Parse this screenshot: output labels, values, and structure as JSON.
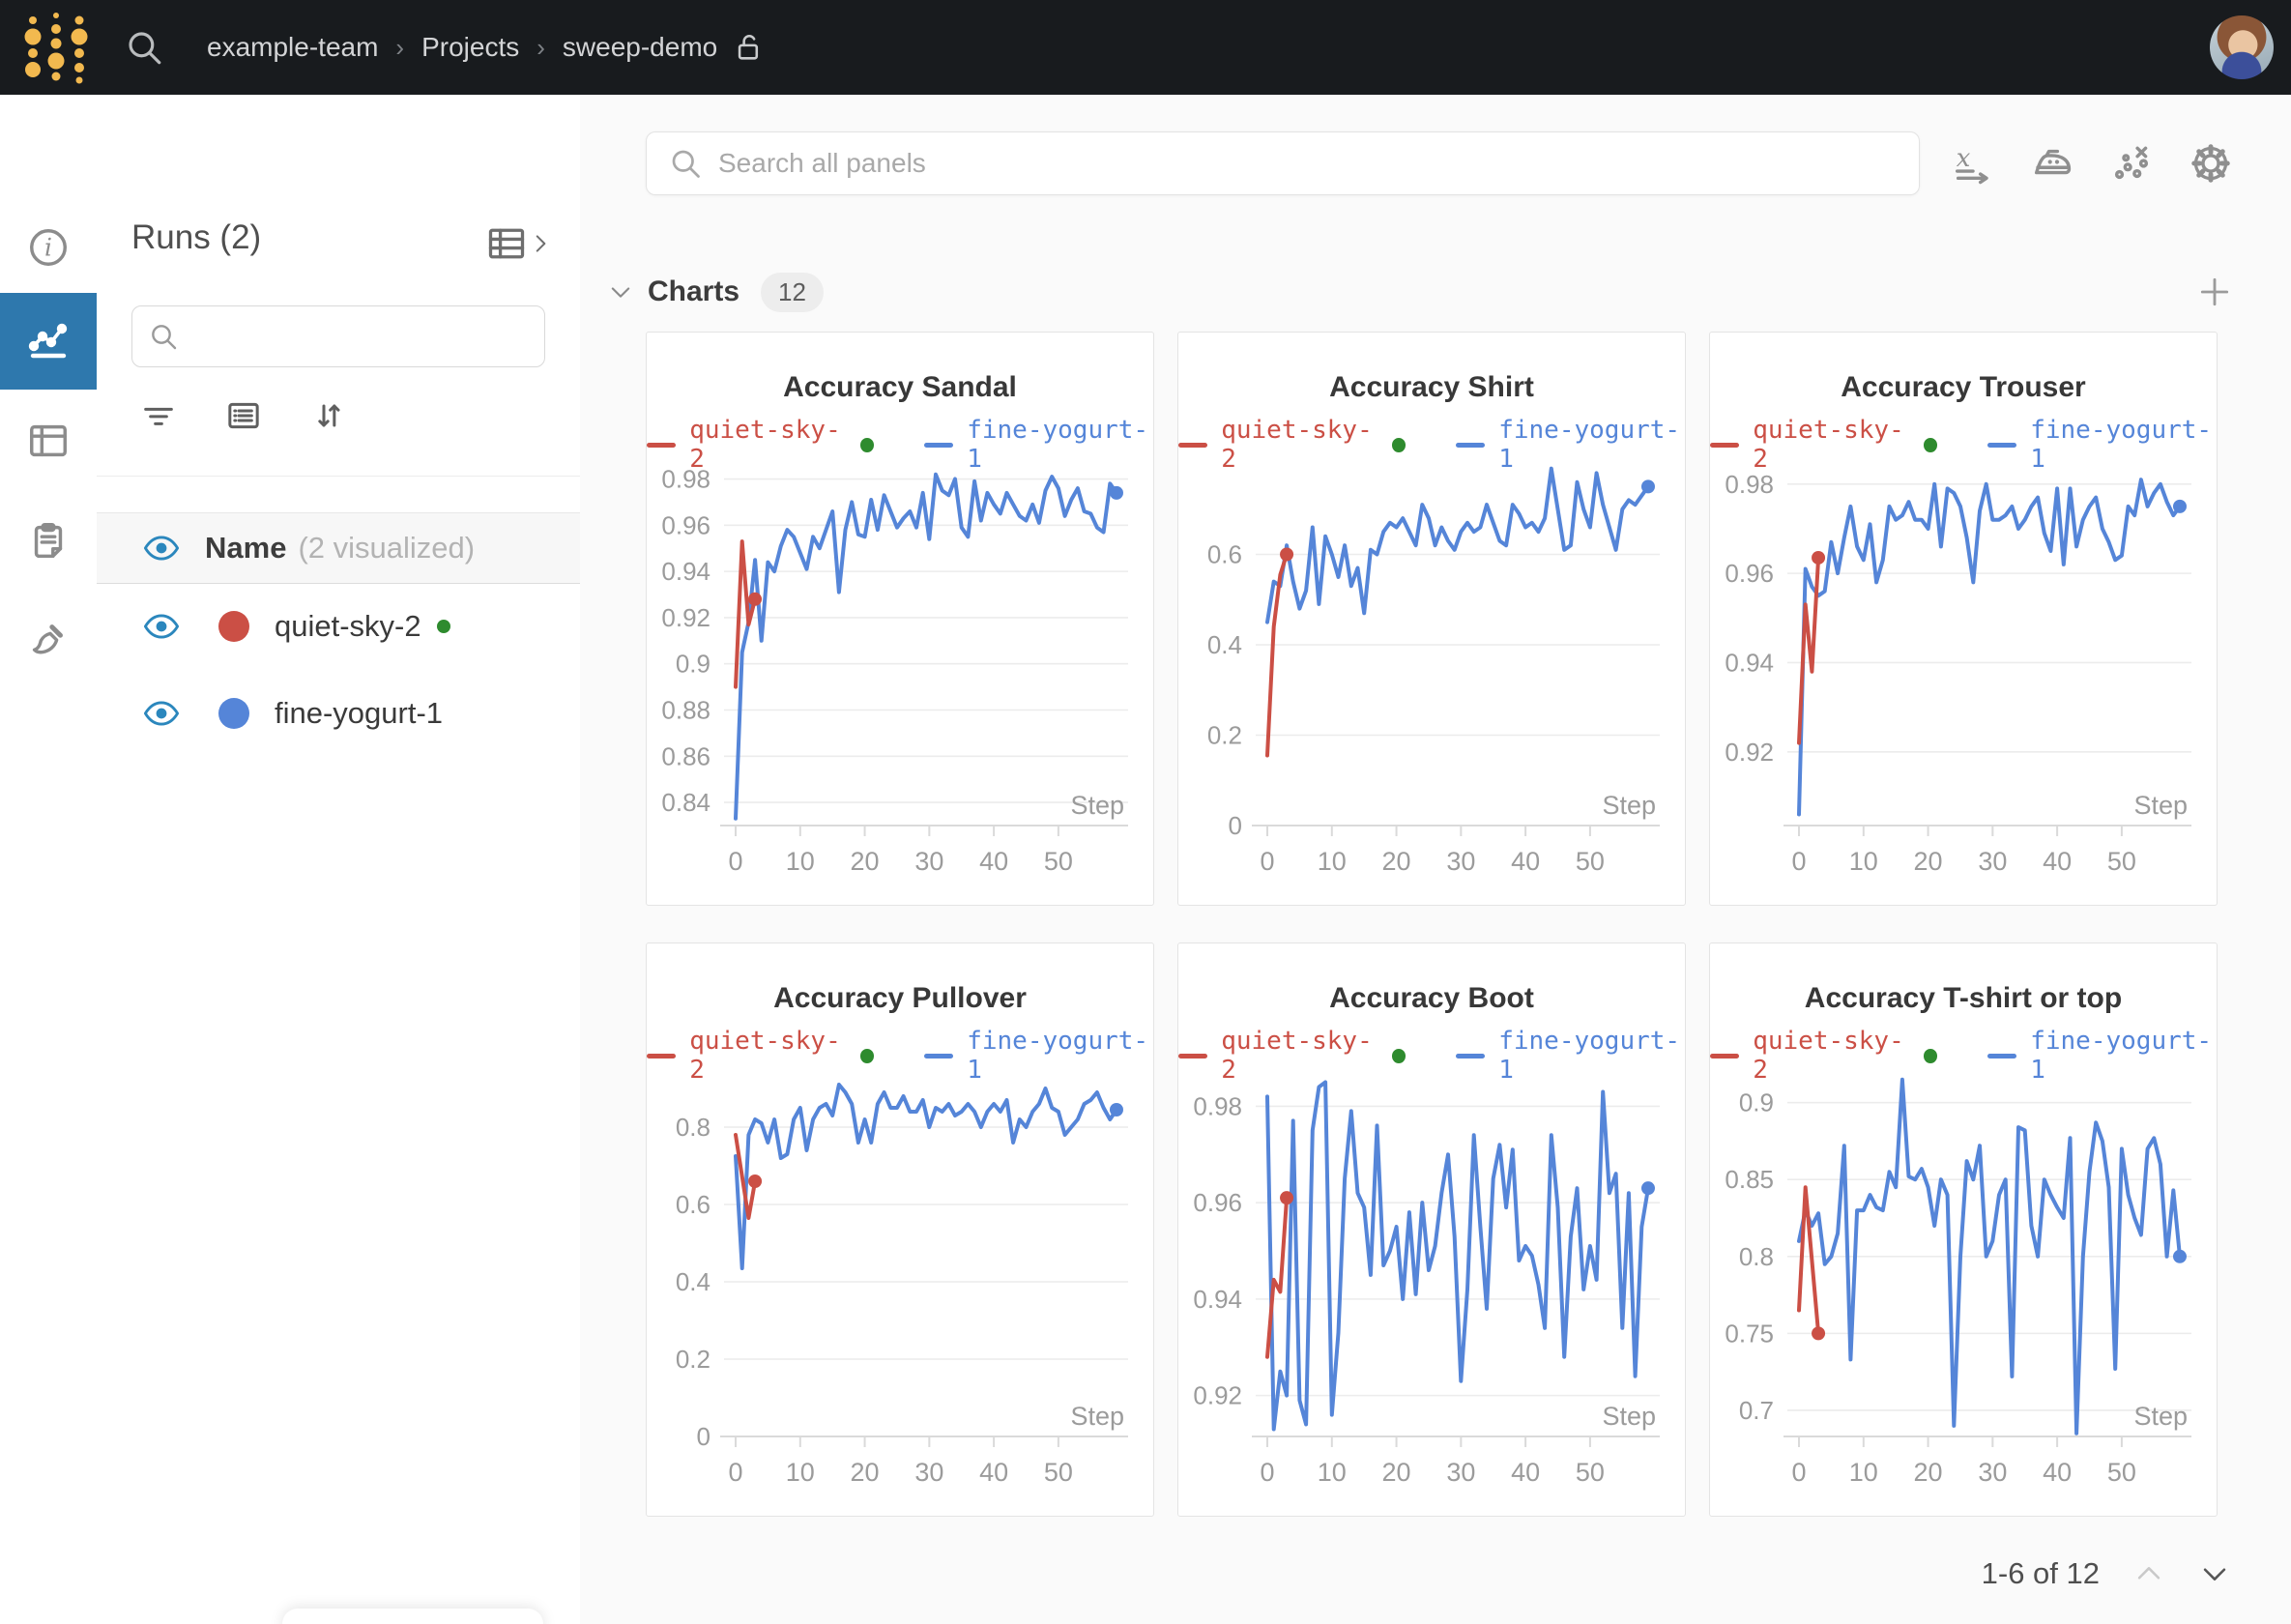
{
  "topbar": {
    "breadcrumb": {
      "items": [
        "example-team",
        "Projects",
        "sweep-demo"
      ],
      "separator": "›"
    }
  },
  "runs": {
    "title": "Runs (2)",
    "search_placeholder": "",
    "header": {
      "name_label": "Name",
      "visualized_note": "(2 visualized)"
    },
    "rows": [
      {
        "name": "quiet-sky-2",
        "color": "#cb4f45",
        "status_dot": "#2e8b2e"
      },
      {
        "name": "fine-yogurt-1",
        "color": "#5585d8",
        "status_dot": null
      }
    ]
  },
  "panels": {
    "search_placeholder": "Search all panels",
    "section_label": "Charts",
    "section_count": "12",
    "pagination": {
      "label": "1-6 of 12"
    }
  },
  "chart_data": [
    {
      "type": "line",
      "title": "Accuracy Sandal",
      "xlabel": "Step",
      "xticks": [
        0,
        10,
        20,
        30,
        40,
        50
      ],
      "xlim": [
        -1.8,
        60.8
      ],
      "yticks": [
        0.84,
        0.86,
        0.88,
        0.9,
        0.92,
        0.94,
        0.96,
        0.98
      ],
      "ytick_labels": [
        "0.84",
        "0.86",
        "0.88",
        "0.9",
        "0.92",
        "0.94",
        "0.96",
        "0.98"
      ],
      "ylim": [
        0.83,
        0.9865
      ],
      "series": [
        {
          "name": "quiet-sky-2",
          "color": "#cb4f45",
          "status_dot": "#2e8b2e",
          "x": [
            0,
            1,
            2,
            3
          ],
          "y": [
            0.89,
            0.953,
            0.917,
            0.928
          ]
        },
        {
          "name": "fine-yogurt-1",
          "color": "#5585d8",
          "status_dot": null,
          "y": [
            0.833,
            0.905,
            0.918,
            0.945,
            0.91,
            0.944,
            0.94,
            0.951,
            0.958,
            0.955,
            0.948,
            0.941,
            0.955,
            0.95,
            0.958,
            0.966,
            0.931,
            0.958,
            0.97,
            0.956,
            0.955,
            0.971,
            0.958,
            0.973,
            0.966,
            0.959,
            0.963,
            0.966,
            0.959,
            0.974,
            0.954,
            0.982,
            0.975,
            0.973,
            0.98,
            0.959,
            0.955,
            0.979,
            0.962,
            0.974,
            0.969,
            0.965,
            0.974,
            0.969,
            0.964,
            0.962,
            0.969,
            0.961,
            0.975,
            0.981,
            0.976,
            0.964,
            0.971,
            0.976,
            0.966,
            0.965,
            0.959,
            0.957,
            0.978,
            0.974
          ]
        }
      ]
    },
    {
      "type": "line",
      "title": "Accuracy Shirt",
      "xlabel": "Step",
      "xticks": [
        0,
        10,
        20,
        30,
        40,
        50
      ],
      "xlim": [
        -1.8,
        60.8
      ],
      "yticks": [
        0,
        0.2,
        0.4,
        0.6
      ],
      "ytick_labels": [
        "0",
        "0.2",
        "0.4",
        "0.6"
      ],
      "ylim": [
        0,
        0.8
      ],
      "series": [
        {
          "name": "quiet-sky-2",
          "color": "#cb4f45",
          "status_dot": "#2e8b2e",
          "x": [
            0,
            1,
            2,
            3
          ],
          "y": [
            0.155,
            0.44,
            0.555,
            0.6
          ]
        },
        {
          "name": "fine-yogurt-1",
          "color": "#5585d8",
          "status_dot": null,
          "y": [
            0.45,
            0.54,
            0.53,
            0.62,
            0.54,
            0.48,
            0.52,
            0.66,
            0.49,
            0.64,
            0.6,
            0.55,
            0.62,
            0.53,
            0.57,
            0.47,
            0.61,
            0.6,
            0.65,
            0.67,
            0.66,
            0.68,
            0.65,
            0.62,
            0.71,
            0.68,
            0.62,
            0.66,
            0.63,
            0.61,
            0.65,
            0.67,
            0.65,
            0.66,
            0.71,
            0.67,
            0.63,
            0.62,
            0.71,
            0.69,
            0.66,
            0.67,
            0.65,
            0.68,
            0.79,
            0.7,
            0.61,
            0.62,
            0.76,
            0.7,
            0.66,
            0.78,
            0.71,
            0.66,
            0.61,
            0.7,
            0.72,
            0.71,
            0.73,
            0.75
          ]
        }
      ]
    },
    {
      "type": "line",
      "title": "Accuracy Trouser",
      "xlabel": "Step",
      "xticks": [
        0,
        10,
        20,
        30,
        40,
        50
      ],
      "xlim": [
        -1.8,
        60.8
      ],
      "yticks": [
        0.92,
        0.94,
        0.96,
        0.98
      ],
      "ytick_labels": [
        "0.92",
        "0.94",
        "0.96",
        "0.98"
      ],
      "ylim": [
        0.9035,
        0.9845
      ],
      "series": [
        {
          "name": "quiet-sky-2",
          "color": "#cb4f45",
          "status_dot": "#2e8b2e",
          "x": [
            0,
            1,
            2,
            3
          ],
          "y": [
            0.922,
            0.953,
            0.938,
            0.9635
          ]
        },
        {
          "name": "fine-yogurt-1",
          "color": "#5585d8",
          "status_dot": null,
          "y": [
            0.906,
            0.961,
            0.957,
            0.955,
            0.956,
            0.967,
            0.96,
            0.968,
            0.975,
            0.966,
            0.963,
            0.971,
            0.958,
            0.963,
            0.975,
            0.972,
            0.973,
            0.976,
            0.972,
            0.972,
            0.97,
            0.98,
            0.966,
            0.979,
            0.978,
            0.975,
            0.968,
            0.958,
            0.974,
            0.98,
            0.972,
            0.972,
            0.973,
            0.975,
            0.97,
            0.972,
            0.975,
            0.977,
            0.969,
            0.965,
            0.979,
            0.962,
            0.979,
            0.966,
            0.972,
            0.975,
            0.977,
            0.97,
            0.967,
            0.963,
            0.964,
            0.975,
            0.973,
            0.981,
            0.975,
            0.978,
            0.98,
            0.976,
            0.973,
            0.975
          ]
        }
      ]
    },
    {
      "type": "line",
      "title": "Accuracy Pullover",
      "xlabel": "Step",
      "xticks": [
        0,
        10,
        20,
        30,
        40,
        50
      ],
      "xlim": [
        -1.8,
        60.8
      ],
      "yticks": [
        0,
        0.2,
        0.4,
        0.6,
        0.8
      ],
      "ytick_labels": [
        "0",
        "0.2",
        "0.4",
        "0.6",
        "0.8"
      ],
      "ylim": [
        0,
        0.935
      ],
      "series": [
        {
          "name": "quiet-sky-2",
          "color": "#cb4f45",
          "status_dot": "#2e8b2e",
          "x": [
            0,
            2,
            3
          ],
          "y": [
            0.78,
            0.565,
            0.66
          ]
        },
        {
          "name": "fine-yogurt-1",
          "color": "#5585d8",
          "status_dot": null,
          "y": [
            0.725,
            0.435,
            0.78,
            0.82,
            0.81,
            0.76,
            0.82,
            0.72,
            0.73,
            0.82,
            0.85,
            0.74,
            0.82,
            0.85,
            0.86,
            0.83,
            0.91,
            0.89,
            0.86,
            0.76,
            0.82,
            0.76,
            0.86,
            0.89,
            0.85,
            0.85,
            0.88,
            0.84,
            0.84,
            0.87,
            0.8,
            0.85,
            0.84,
            0.86,
            0.83,
            0.84,
            0.86,
            0.84,
            0.8,
            0.84,
            0.86,
            0.84,
            0.87,
            0.76,
            0.82,
            0.8,
            0.84,
            0.86,
            0.9,
            0.85,
            0.84,
            0.78,
            0.8,
            0.82,
            0.86,
            0.87,
            0.89,
            0.85,
            0.82,
            0.845
          ]
        }
      ]
    },
    {
      "type": "line",
      "title": "Accuracy Boot",
      "xlabel": "Step",
      "xticks": [
        0,
        10,
        20,
        30,
        40,
        50
      ],
      "xlim": [
        -1.8,
        60.8
      ],
      "yticks": [
        0.92,
        0.94,
        0.96,
        0.98
      ],
      "ytick_labels": [
        "0.92",
        "0.94",
        "0.96",
        "0.98"
      ],
      "ylim": [
        0.9115,
        0.9865
      ],
      "series": [
        {
          "name": "quiet-sky-2",
          "color": "#cb4f45",
          "status_dot": "#2e8b2e",
          "x": [
            0,
            1,
            2,
            3
          ],
          "y": [
            0.928,
            0.944,
            0.9415,
            0.961
          ]
        },
        {
          "name": "fine-yogurt-1",
          "color": "#5585d8",
          "status_dot": null,
          "y": [
            0.982,
            0.913,
            0.925,
            0.92,
            0.977,
            0.919,
            0.914,
            0.975,
            0.984,
            0.985,
            0.916,
            0.933,
            0.965,
            0.979,
            0.962,
            0.959,
            0.945,
            0.976,
            0.947,
            0.95,
            0.955,
            0.94,
            0.958,
            0.941,
            0.96,
            0.946,
            0.951,
            0.962,
            0.97,
            0.953,
            0.923,
            0.942,
            0.974,
            0.955,
            0.938,
            0.965,
            0.972,
            0.959,
            0.971,
            0.948,
            0.951,
            0.949,
            0.943,
            0.934,
            0.974,
            0.959,
            0.928,
            0.953,
            0.963,
            0.942,
            0.951,
            0.944,
            0.983,
            0.962,
            0.966,
            0.934,
            0.962,
            0.924,
            0.955,
            0.963
          ]
        }
      ]
    },
    {
      "type": "line",
      "title": "Accuracy T-shirt or top",
      "xlabel": "Step",
      "xticks": [
        0,
        10,
        20,
        30,
        40,
        50
      ],
      "xlim": [
        -1.8,
        60.8
      ],
      "yticks": [
        0.7,
        0.75,
        0.8,
        0.85,
        0.9
      ],
      "ytick_labels": [
        "0.7",
        "0.75",
        "0.8",
        "0.85",
        "0.9"
      ],
      "ylim": [
        0.683,
        0.918
      ],
      "series": [
        {
          "name": "quiet-sky-2",
          "color": "#cb4f45",
          "status_dot": "#2e8b2e",
          "x": [
            0,
            1,
            3
          ],
          "y": [
            0.765,
            0.845,
            0.75
          ]
        },
        {
          "name": "fine-yogurt-1",
          "color": "#5585d8",
          "status_dot": null,
          "y": [
            0.81,
            0.83,
            0.82,
            0.828,
            0.795,
            0.8,
            0.815,
            0.872,
            0.733,
            0.83,
            0.83,
            0.84,
            0.832,
            0.83,
            0.855,
            0.845,
            0.915,
            0.852,
            0.85,
            0.857,
            0.845,
            0.82,
            0.85,
            0.84,
            0.69,
            0.8,
            0.862,
            0.85,
            0.872,
            0.8,
            0.81,
            0.84,
            0.85,
            0.722,
            0.884,
            0.882,
            0.82,
            0.8,
            0.85,
            0.84,
            0.832,
            0.825,
            0.877,
            0.685,
            0.8,
            0.855,
            0.887,
            0.875,
            0.845,
            0.727,
            0.87,
            0.84,
            0.825,
            0.814,
            0.87,
            0.877,
            0.86,
            0.8,
            0.843,
            0.8
          ]
        }
      ]
    }
  ]
}
